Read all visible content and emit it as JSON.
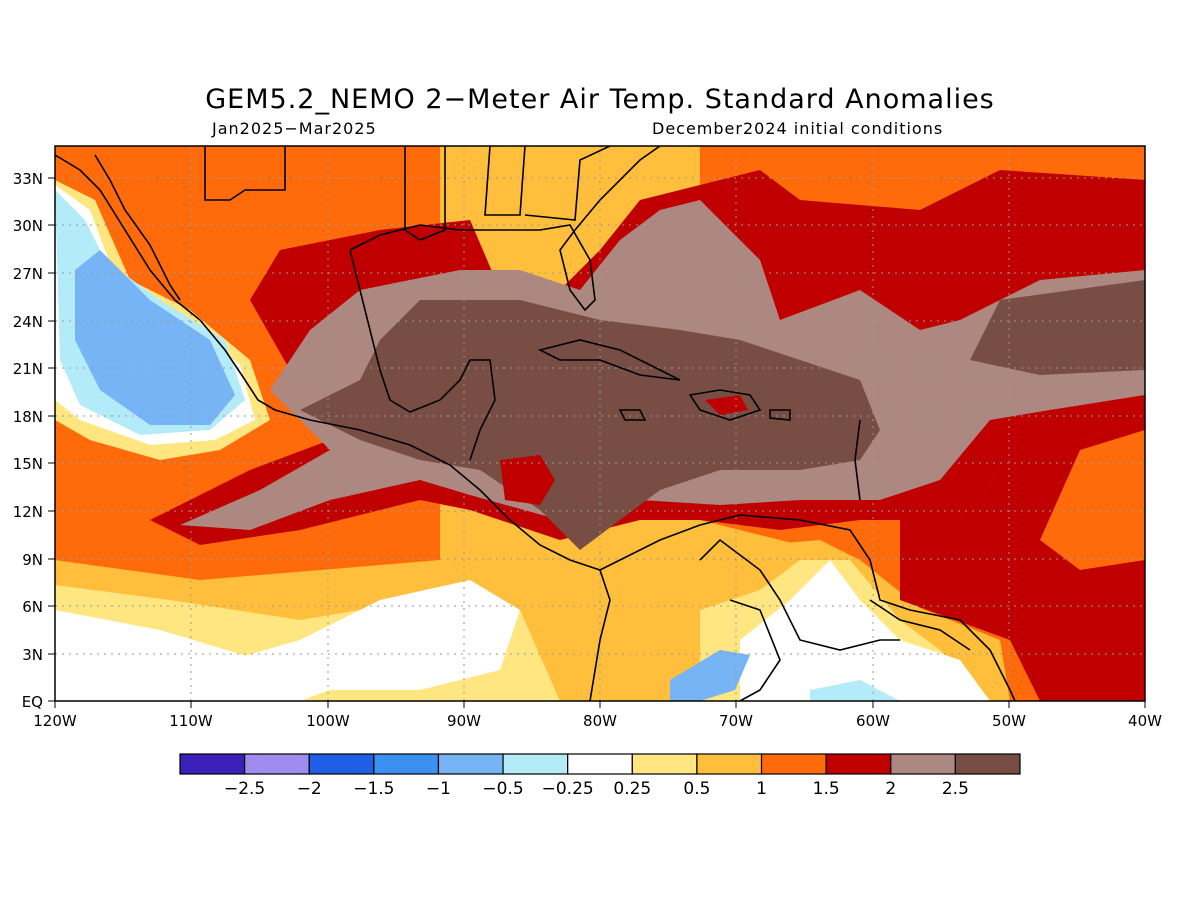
{
  "title": "GEM5.2_NEMO 2−Meter Air Temp. Standard Anomalies",
  "subtitle_left": "Jan2025−Mar2025",
  "subtitle_right": "December2024 initial conditions",
  "map": {
    "lon_range": [
      -120,
      -40
    ],
    "lat_range": [
      0,
      35
    ],
    "lon_labels": [
      "120W",
      "110W",
      "100W",
      "90W",
      "80W",
      "70W",
      "60W",
      "50W",
      "40W"
    ],
    "lat_labels": [
      "EQ",
      "3N",
      "6N",
      "9N",
      "12N",
      "15N",
      "18N",
      "21N",
      "24N",
      "27N",
      "30N",
      "33N"
    ],
    "gridlines": true
  },
  "colorbar": {
    "colors": [
      "#3a1fb8",
      "#9f8af0",
      "#1f5fe6",
      "#3c90f0",
      "#76b4f5",
      "#b3ecf8",
      "#ffffff",
      "#ffe680",
      "#ffbe3c",
      "#ff6a0a",
      "#c00000",
      "#ad8880",
      "#784d44"
    ],
    "labels": [
      "−2.5",
      "−2",
      "−1.5",
      "−1",
      "−0.5",
      "−0.25",
      "0.25",
      "0.5",
      "1",
      "1.5",
      "2",
      "2.5"
    ]
  },
  "chart_data": {
    "type": "heatmap",
    "title": "GEM5.2_NEMO 2−Meter Air Temp. Standard Anomalies",
    "subtitle": "Jan2025−Mar2025 / December2024 initial conditions",
    "xlim": [
      -120,
      -40
    ],
    "ylim": [
      0,
      35
    ],
    "levels": [
      -2.5,
      -2,
      -1.5,
      -1,
      -0.5,
      -0.25,
      0.25,
      0.5,
      1,
      1.5,
      2,
      2.5
    ],
    "regions": [
      {
        "name": "Gulf of Mexico / Caribbean core",
        "anomaly": "> 2.5"
      },
      {
        "name": "Eastern tropical Pacific off Baja California",
        "anomaly": "-1 to -0.5"
      },
      {
        "name": "Equatorial eastern Pacific",
        "anomaly": "-0.25 to 0.5"
      },
      {
        "name": "Central tropical Atlantic",
        "anomaly": "1.5 to 2.5"
      },
      {
        "name": "Northern South America interior",
        "anomaly": "-0.25 to 1"
      }
    ]
  }
}
